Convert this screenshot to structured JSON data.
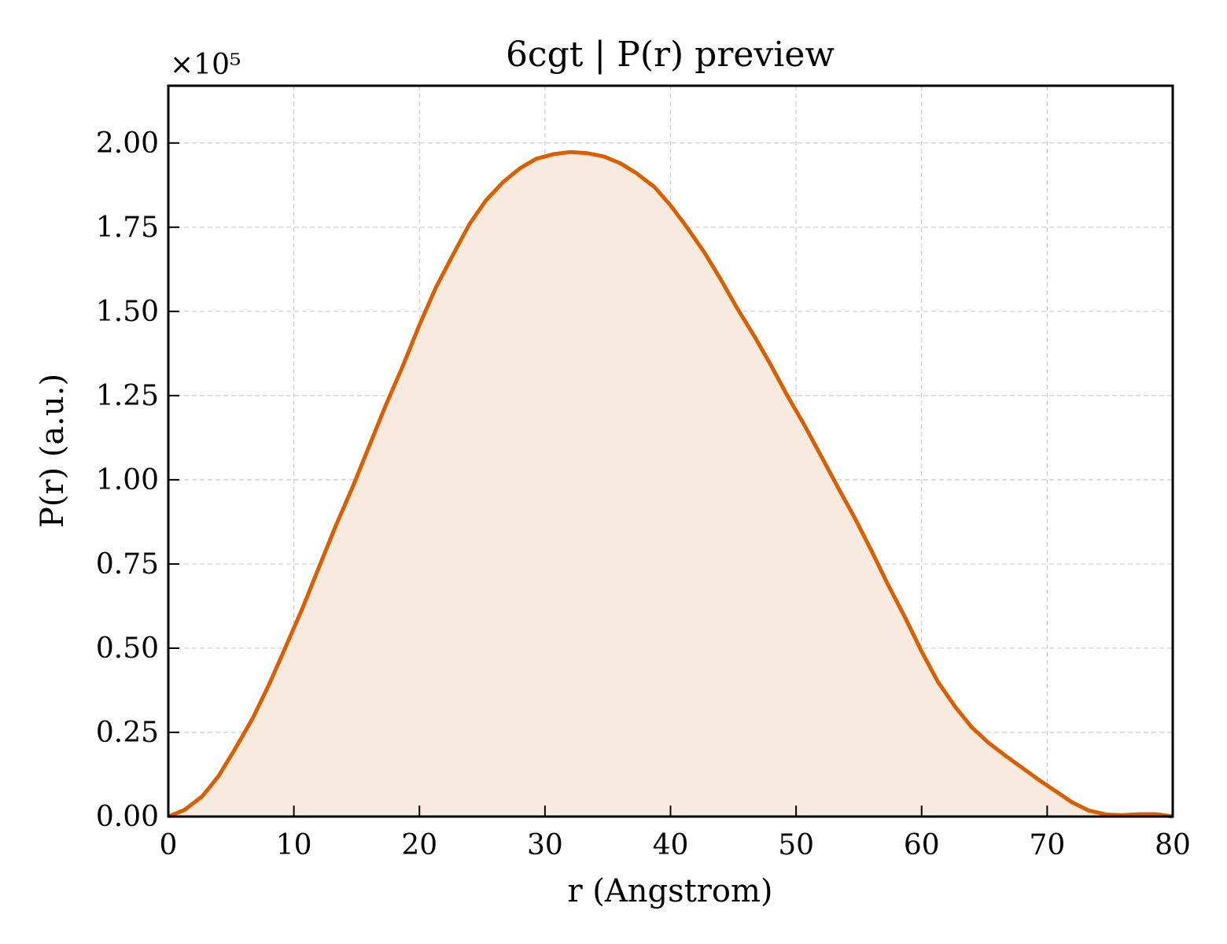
{
  "chart_data": {
    "type": "area",
    "title": "6cgt | P(r) preview",
    "xlabel": "r (Angstrom)",
    "ylabel": "P(r) (a.u.)",
    "y_multiplier": "×10⁵",
    "xlim": [
      0,
      80
    ],
    "ylim": [
      0,
      2.17
    ],
    "x_ticks": [
      0,
      10,
      20,
      30,
      40,
      50,
      60,
      70,
      80
    ],
    "x_tick_labels": [
      "0",
      "10",
      "20",
      "30",
      "40",
      "50",
      "60",
      "70",
      "80"
    ],
    "y_ticks": [
      0,
      0.25,
      0.5,
      0.75,
      1.0,
      1.25,
      1.5,
      1.75,
      2.0
    ],
    "y_tick_labels": [
      "0.00",
      "0.25",
      "0.50",
      "0.75",
      "1.00",
      "1.25",
      "1.50",
      "1.75",
      "2.00"
    ],
    "grid": true,
    "line_color": "#d95f02",
    "fill_color": "#f8eadf",
    "series": [
      {
        "x": [
          0,
          1.3,
          2.7,
          4.0,
          5.3,
          6.7,
          8.0,
          9.3,
          10.7,
          12.0,
          13.3,
          14.7,
          16.0,
          17.3,
          18.7,
          20.0,
          21.3,
          22.7,
          24.0,
          25.3,
          26.7,
          28.0,
          29.3,
          30.7,
          32.0,
          33.3,
          34.7,
          36.0,
          37.3,
          38.7,
          40.0,
          41.3,
          42.7,
          44.0,
          45.3,
          46.7,
          48.0,
          49.3,
          50.7,
          52.0,
          53.3,
          54.7,
          56.0,
          57.3,
          58.7,
          60.0,
          61.3,
          62.7,
          64.0,
          65.3,
          66.7,
          68.0,
          69.3,
          70.7,
          72.0,
          73.3,
          74.7,
          76.0,
          77.3,
          78.7,
          80.0
        ],
        "y": [
          0,
          0.02,
          0.06,
          0.12,
          0.2,
          0.29,
          0.39,
          0.5,
          0.62,
          0.74,
          0.86,
          0.98,
          1.1,
          1.22,
          1.34,
          1.46,
          1.57,
          1.67,
          1.76,
          1.83,
          1.885,
          1.925,
          1.953,
          1.967,
          1.973,
          1.97,
          1.96,
          1.94,
          1.91,
          1.87,
          1.815,
          1.75,
          1.675,
          1.595,
          1.51,
          1.425,
          1.34,
          1.25,
          1.16,
          1.07,
          0.98,
          0.885,
          0.79,
          0.69,
          0.59,
          0.49,
          0.4,
          0.325,
          0.265,
          0.22,
          0.18,
          0.145,
          0.11,
          0.075,
          0.042,
          0.018,
          0.006,
          0.004,
          0.007,
          0.007,
          0.0
        ]
      }
    ]
  }
}
